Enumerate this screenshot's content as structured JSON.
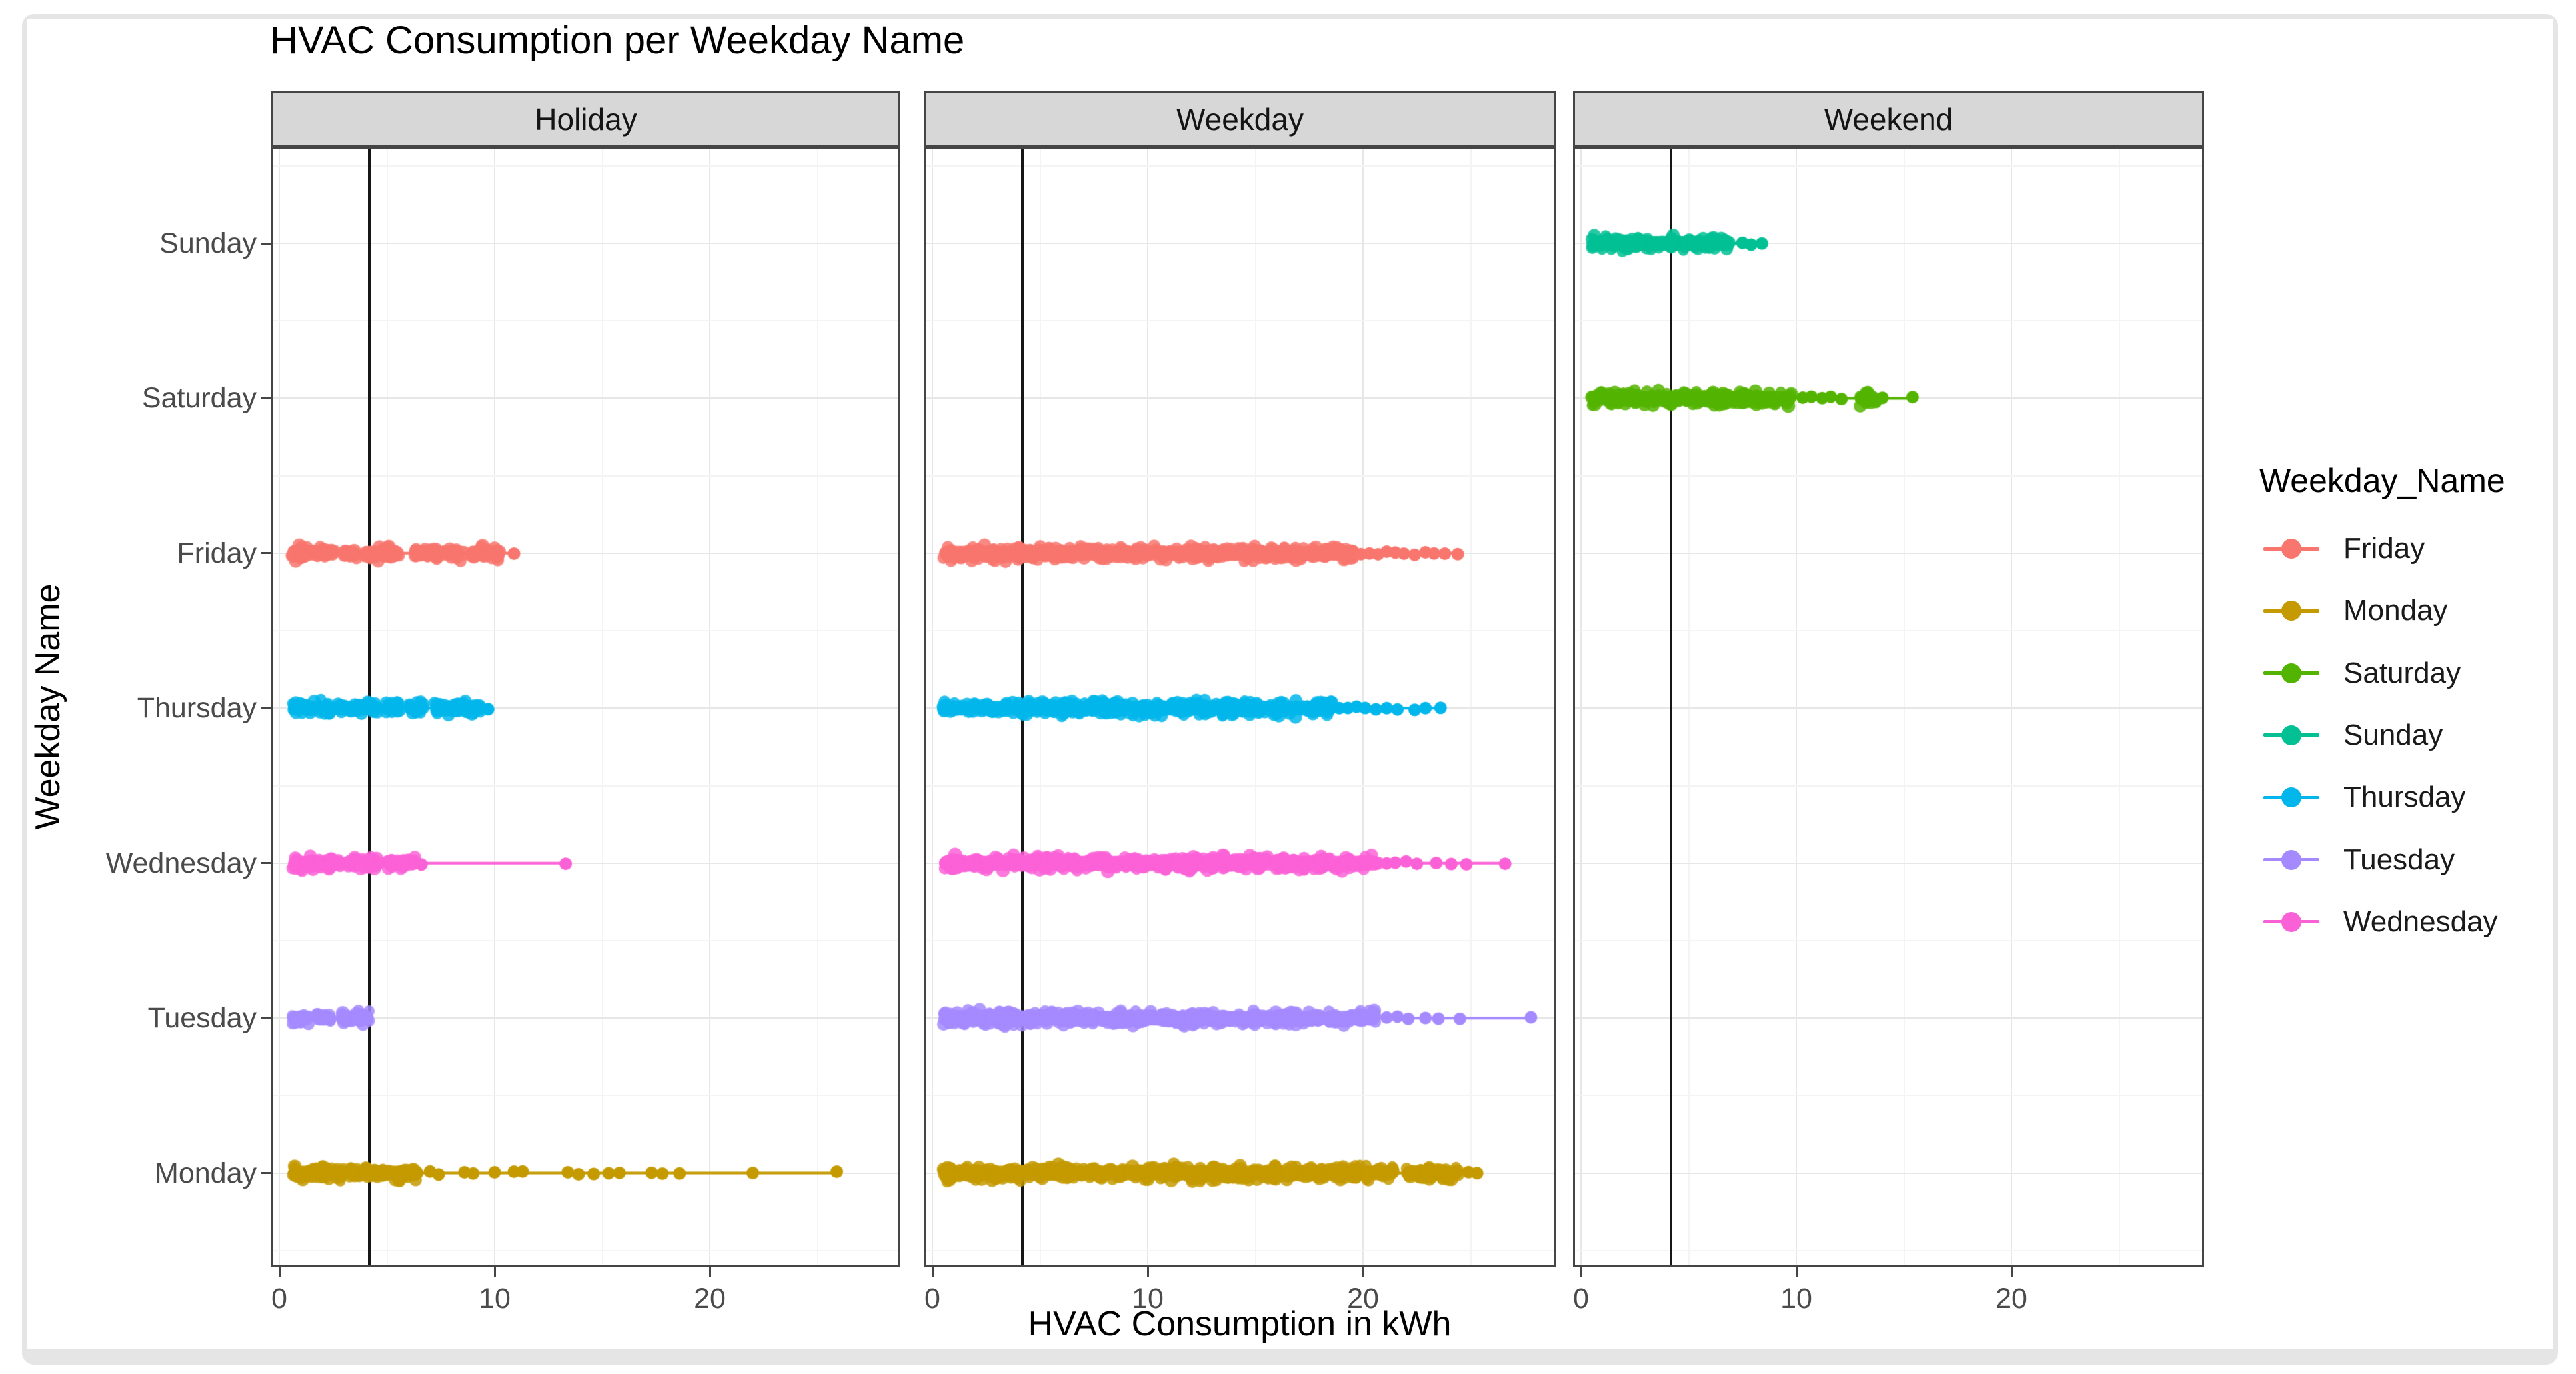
{
  "window": {
    "background": "#ffffff",
    "frame_color": "#e5e5e5",
    "canvas_color": "#ffffff",
    "strip_fill": "#d7d7d7",
    "panel_border": "#454545"
  },
  "title": "HVAC Consumption per Weekday Name",
  "axes": {
    "x_title": "HVAC Consumption in kWh",
    "y_title": "Weekday Name",
    "x_ticks": [
      "0",
      "10",
      "20"
    ],
    "x_tick_values": [
      0,
      10,
      20
    ],
    "x_minor_values": [
      5,
      15,
      25
    ],
    "y_categories": [
      "Sunday",
      "Saturday",
      "Friday",
      "Thursday",
      "Wednesday",
      "Tuesday",
      "Monday"
    ]
  },
  "facet_labels": [
    "Holiday",
    "Weekday",
    "Weekend"
  ],
  "legend": {
    "title": "Weekday_Name",
    "entries": [
      {
        "label": "Friday",
        "color": "#F8766D"
      },
      {
        "label": "Monday",
        "color": "#C49A00"
      },
      {
        "label": "Saturday",
        "color": "#53B400"
      },
      {
        "label": "Sunday",
        "color": "#00C094"
      },
      {
        "label": "Thursday",
        "color": "#00B6EB"
      },
      {
        "label": "Tuesday",
        "color": "#A58AFF"
      },
      {
        "label": "Wednesday",
        "color": "#FB61D7"
      }
    ]
  },
  "chart_data": {
    "type": "scatter",
    "title": "HVAC Consumption per Weekday Name",
    "xlabel": "HVAC Consumption in kWh",
    "ylabel": "Weekday Name",
    "x_range": [
      0,
      28.9
    ],
    "x_ticks": [
      0,
      10,
      20
    ],
    "grid": "major+minor",
    "legend_position": "right",
    "reference_line_x": 4.17,
    "reference_line_color": "#161616",
    "jitter_note": "each series is a horizontal jittered point strip: dense = continuous value ranges (kWh), points = isolated values, range = min/max span drawn as a thin line",
    "colors": {
      "Friday": "#F8766D",
      "Monday": "#C49A00",
      "Saturday": "#53B400",
      "Sunday": "#00C094",
      "Thursday": "#00B6EB",
      "Tuesday": "#A58AFF",
      "Wednesday": "#FB61D7"
    },
    "facets": [
      {
        "name": "Holiday",
        "series": [
          {
            "day": "Friday",
            "row": 2,
            "range": [
              0.6,
              10.9
            ],
            "dense": [
              [
                0.6,
                2.6
              ],
              [
                3.0,
                3.6
              ],
              [
                3.9,
                5.6
              ],
              [
                6.3,
                8.7
              ],
              [
                8.9,
                10.3
              ]
            ],
            "points": [
              10.9
            ]
          },
          {
            "day": "Thursday",
            "row": 3,
            "range": [
              0.6,
              9.7
            ],
            "dense": [
              [
                0.6,
                2.4
              ],
              [
                2.6,
                4.6
              ],
              [
                4.9,
                5.6
              ],
              [
                6.0,
                6.7
              ],
              [
                7.2,
                9.4
              ]
            ],
            "points": [
              9.7
            ]
          },
          {
            "day": "Wednesday",
            "row": 4,
            "range": [
              0.6,
              13.3
            ],
            "dense": [
              [
                0.6,
                2.9
              ],
              [
                3.1,
                4.7
              ],
              [
                5.0,
                6.3
              ]
            ],
            "points": [
              6.6,
              13.3
            ]
          },
          {
            "day": "Tuesday",
            "row": 5,
            "range": [
              0.6,
              4.2
            ],
            "dense": [
              [
                0.6,
                1.4
              ],
              [
                1.7,
                2.4
              ],
              [
                2.8,
                4.2
              ]
            ],
            "points": []
          },
          {
            "day": "Monday",
            "row": 6,
            "range": [
              0.6,
              25.9
            ],
            "dense": [
              [
                0.6,
                3.0
              ],
              [
                3.2,
                6.5
              ]
            ],
            "points": [
              7.0,
              7.4,
              8.6,
              9.0,
              10.0,
              10.9,
              11.3,
              13.4,
              13.9,
              14.6,
              15.3,
              15.8,
              17.3,
              17.8,
              18.6,
              22.0,
              25.9
            ]
          }
        ]
      },
      {
        "name": "Weekday",
        "series": [
          {
            "day": "Friday",
            "row": 2,
            "range": [
              0.5,
              24.4
            ],
            "dense": [
              [
                0.5,
                16.4
              ],
              [
                16.6,
                19.6
              ]
            ],
            "points": [
              19.9,
              20.3,
              20.7,
              21.1,
              21.5,
              21.9,
              22.4,
              22.9,
              23.3,
              23.8,
              24.4
            ]
          },
          {
            "day": "Thursday",
            "row": 3,
            "range": [
              0.5,
              23.6
            ],
            "dense": [
              [
                0.5,
                18.6
              ]
            ],
            "points": [
              18.9,
              19.3,
              19.7,
              20.1,
              20.6,
              21.1,
              21.6,
              22.4,
              22.9,
              23.6
            ]
          },
          {
            "day": "Wednesday",
            "row": 4,
            "range": [
              0.5,
              26.6
            ],
            "dense": [
              [
                0.5,
                19.4
              ],
              [
                19.5,
                20.7
              ]
            ],
            "points": [
              21.1,
              21.5,
              22.0,
              22.5,
              23.4,
              24.1,
              24.8,
              26.6
            ]
          },
          {
            "day": "Tuesday",
            "row": 5,
            "range": [
              0.5,
              27.8
            ],
            "dense": [
              [
                0.5,
                18.2
              ],
              [
                18.4,
                20.6
              ]
            ],
            "points": [
              21.1,
              21.6,
              22.1,
              22.9,
              23.5,
              24.5,
              27.8
            ]
          },
          {
            "day": "Monday",
            "row": 6,
            "range": [
              0.5,
              25.3
            ],
            "dense": [
              [
                0.5,
                21.4
              ],
              [
                22.0,
                24.4
              ]
            ],
            "points": [
              24.9,
              25.3
            ]
          }
        ]
      },
      {
        "name": "Weekend",
        "series": [
          {
            "day": "Sunday",
            "row": 0,
            "range": [
              0.5,
              8.4
            ],
            "dense": [
              [
                0.5,
                6.9
              ]
            ],
            "points": [
              7.5,
              7.9,
              8.4
            ]
          },
          {
            "day": "Saturday",
            "row": 1,
            "range": [
              0.5,
              15.4
            ],
            "dense": [
              [
                0.5,
                9.8
              ],
              [
                12.9,
                13.7
              ]
            ],
            "points": [
              10.3,
              10.7,
              11.2,
              11.6,
              12.1,
              14.0,
              15.4
            ]
          }
        ]
      }
    ]
  }
}
